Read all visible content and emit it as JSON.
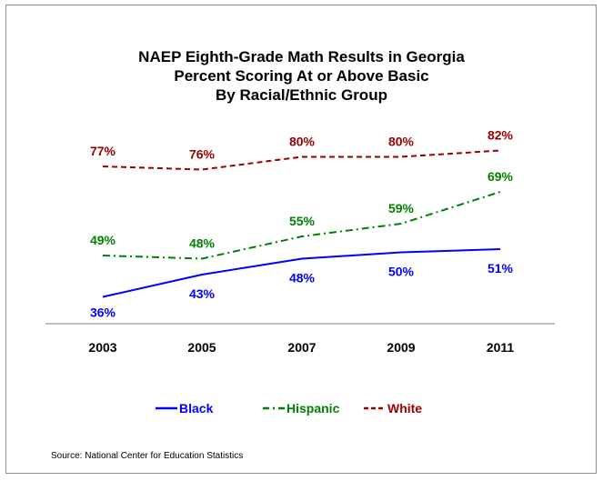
{
  "chart_data": {
    "type": "line",
    "title_lines": [
      "NAEP Eighth-Grade Math Results in Georgia",
      "Percent Scoring At or Above Basic",
      "By Racial/Ethnic Group"
    ],
    "categories": [
      "2003",
      "2005",
      "2007",
      "2009",
      "2011"
    ],
    "ylim": [
      25,
      95
    ],
    "grid": false,
    "legend_position": "bottom",
    "series": [
      {
        "name": "Black",
        "values": [
          36,
          43,
          48,
          50,
          51
        ],
        "labels": [
          "36%",
          "43%",
          "48%",
          "50%",
          "51%"
        ],
        "color": "#0000ff",
        "dash": "solid"
      },
      {
        "name": "Hispanic",
        "values": [
          49,
          48,
          55,
          59,
          69
        ],
        "labels": [
          "49%",
          "48%",
          "55%",
          "59%",
          "69%"
        ],
        "color": "#008000",
        "dash": "dashdot"
      },
      {
        "name": "White",
        "values": [
          77,
          76,
          80,
          80,
          82
        ],
        "labels": [
          "77%",
          "76%",
          "80%",
          "80%",
          "82%"
        ],
        "color": "#990000",
        "dash": "dash"
      }
    ]
  },
  "source": "Source: National Center for Education Statistics"
}
